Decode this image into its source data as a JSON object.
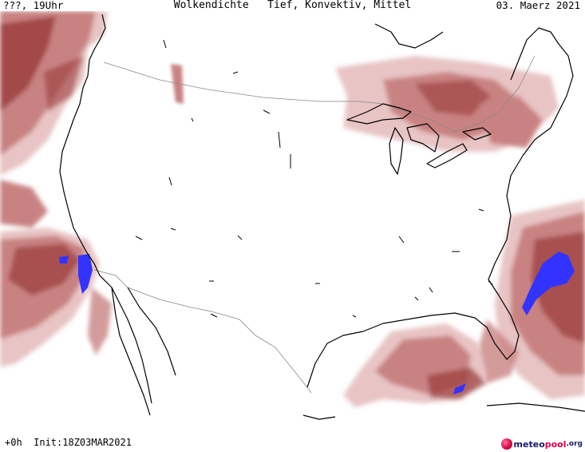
{
  "header": {
    "left": "???, 19Uhr",
    "title": "Wolkendichte   Tief, Konvektiv, Mittel",
    "right": "03. Maerz 2021"
  },
  "footer": {
    "left": "+0h  Init:18Z03MAR2021"
  },
  "logo": {
    "part_a": "meteo",
    "part_b": "pool",
    "part_c": ".org"
  },
  "colors": {
    "cloud_light": "#e8c4c4",
    "cloud_mid": "#c98282",
    "cloud_dark": "#9a3a3a",
    "convective": "#3333ff",
    "coast": "#000000",
    "border": "#888888"
  }
}
